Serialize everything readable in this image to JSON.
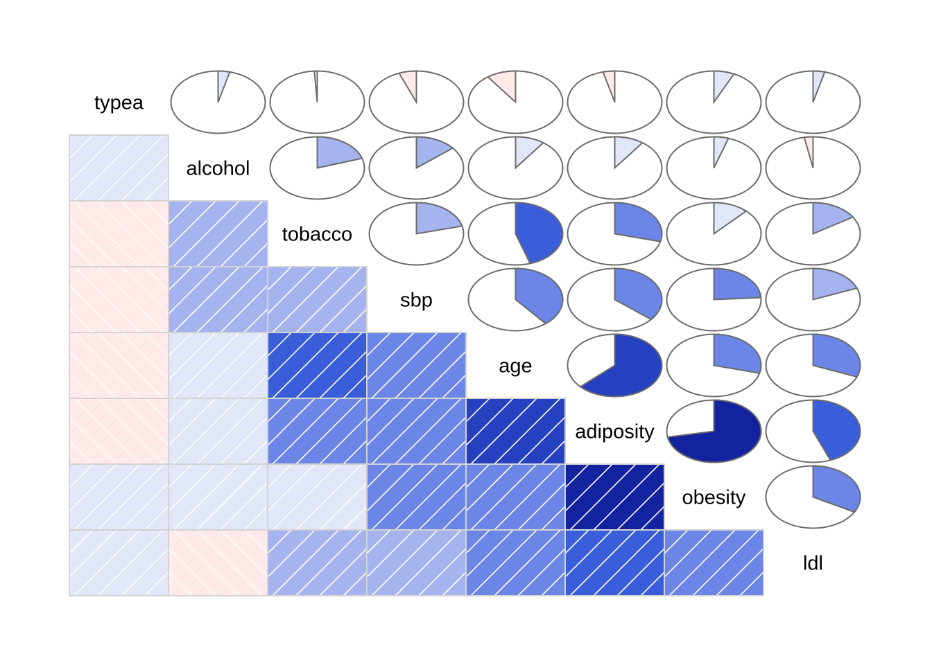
{
  "chart_data": {
    "type": "heatmap",
    "variables": [
      "typea",
      "alcohol",
      "tobacco",
      "sbp",
      "age",
      "adiposity",
      "obesity",
      "ldl"
    ],
    "correlation": [
      [
        1.0,
        0.04,
        -0.01,
        -0.06,
        -0.1,
        -0.04,
        0.07,
        0.04
      ],
      [
        0.04,
        1.0,
        0.2,
        0.14,
        0.1,
        0.1,
        0.05,
        -0.03
      ],
      [
        -0.01,
        0.2,
        1.0,
        0.21,
        0.45,
        0.29,
        0.12,
        0.16
      ],
      [
        -0.06,
        0.14,
        0.21,
        1.0,
        0.39,
        0.36,
        0.24,
        0.19
      ],
      [
        -0.1,
        0.1,
        0.45,
        0.39,
        1.0,
        0.63,
        0.29,
        0.31
      ],
      [
        -0.04,
        0.1,
        0.29,
        0.36,
        0.63,
        1.0,
        0.72,
        0.44
      ],
      [
        0.07,
        0.05,
        0.12,
        0.24,
        0.29,
        0.72,
        1.0,
        0.33
      ],
      [
        0.04,
        -0.03,
        0.16,
        0.19,
        0.31,
        0.44,
        0.33,
        1.0
      ]
    ],
    "lower_panel": "shade",
    "upper_panel": "pie",
    "diagonal_panel": "variable-name",
    "color_scale": {
      "negative": [
        "#ffffff",
        "#ffe9e9",
        "#f7b7b7",
        "#e45a5a",
        "#b41a1a"
      ],
      "positive": [
        "#ffffff",
        "#e1e6f8",
        "#a5b3ef",
        "#6b86e6",
        "#3a5ed9",
        "#2541c0",
        "#13229e"
      ]
    }
  }
}
